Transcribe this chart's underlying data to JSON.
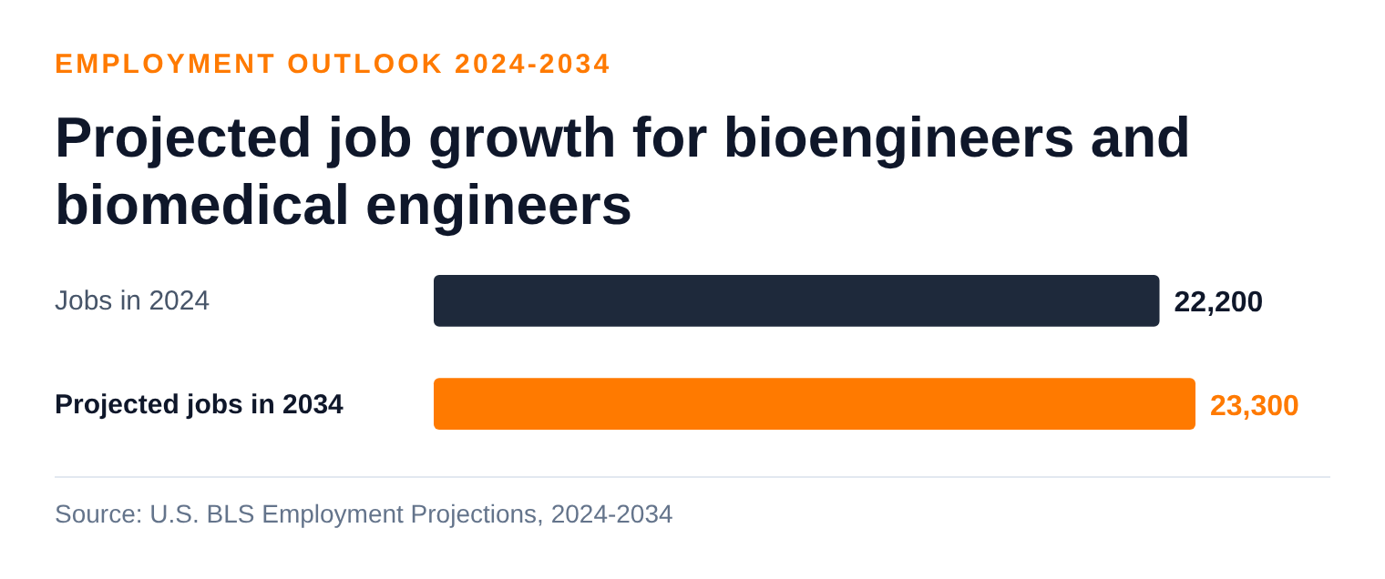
{
  "chart_data": {
    "type": "bar",
    "orientation": "horizontal",
    "subtitle": "EMPLOYMENT OUTLOOK 2024-2034",
    "title": "Projected job growth for bioengineers and biomedical engineers",
    "categories": [
      "Jobs in 2024",
      "Projected jobs in 2034"
    ],
    "values": [
      22200,
      23300
    ],
    "colors": [
      "#1e293b",
      "#ff7a00"
    ],
    "value_labels": [
      "22,200",
      "23,300"
    ],
    "xlim": [
      0,
      23300
    ],
    "annotations": [
      "Source: U.S. BLS Employment Projections, 2024-2034"
    ]
  }
}
